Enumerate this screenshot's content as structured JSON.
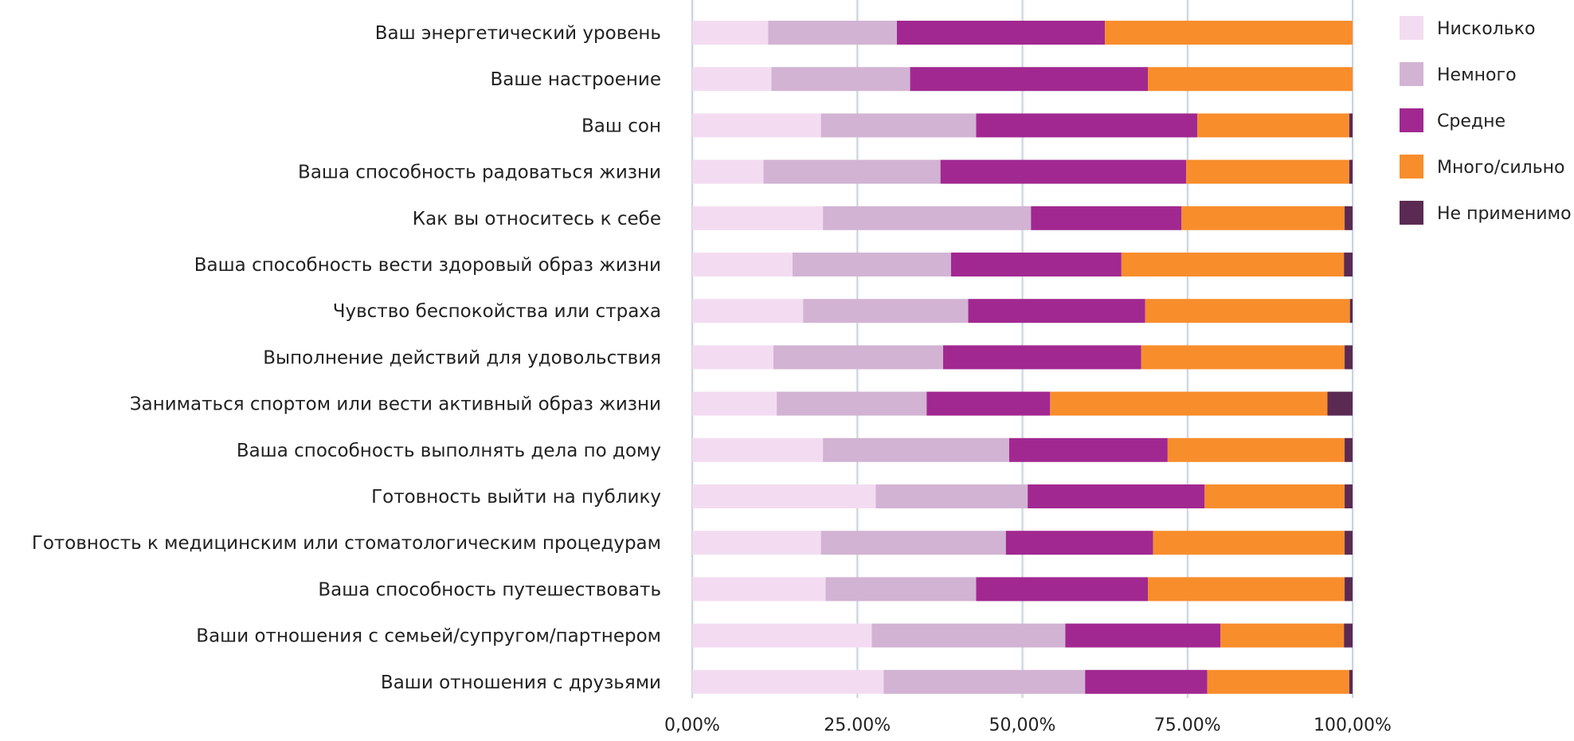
{
  "chart_data": {
    "type": "bar",
    "orientation": "horizontal",
    "stacked": "percent",
    "title": "",
    "xlabel": "",
    "ylabel": "",
    "xlim": [
      0,
      1
    ],
    "grid": true,
    "legend_position": "right",
    "x_ticks": [
      "0,00%",
      "25.00%",
      "50,00%",
      "75.00%",
      "100,00%"
    ],
    "categories": [
      "Ваш энергетический уровень",
      "Ваше настроение",
      "Ваш сон",
      "Ваша способность радоваться жизни",
      "Как вы относитесь к себе",
      "Ваша способность вести здоровый образ жизни",
      "Чувство беспокойства или страха",
      "Выполнение действий для удовольствия",
      "Заниматься спортом или вести активный образ жизни",
      "Ваша способность выполнять дела по дому",
      "Готовность выйти на публику",
      "Готовность к медицинским или стоматологическим процедурам",
      "Ваша способность путешествовать",
      "Ваши отношения с семьей/супругом/партнером",
      "Ваши отношения с друзьями"
    ],
    "series": [
      {
        "name": "Нисколько",
        "color": "#f3dcf1",
        "values": [
          0.115,
          0.12,
          0.195,
          0.108,
          0.198,
          0.152,
          0.168,
          0.123,
          0.128,
          0.198,
          0.278,
          0.195,
          0.202,
          0.272,
          0.29
        ]
      },
      {
        "name": "Немного",
        "color": "#d2b3d3",
        "values": [
          0.195,
          0.21,
          0.235,
          0.268,
          0.315,
          0.24,
          0.25,
          0.257,
          0.227,
          0.282,
          0.23,
          0.28,
          0.228,
          0.293,
          0.305
        ]
      },
      {
        "name": "Средне",
        "color": "#a12890",
        "values": [
          0.315,
          0.36,
          0.335,
          0.372,
          0.228,
          0.258,
          0.268,
          0.3,
          0.187,
          0.24,
          0.268,
          0.223,
          0.26,
          0.235,
          0.185
        ]
      },
      {
        "name": "Много/сильно",
        "color": "#f88d2c",
        "values": [
          0.375,
          0.31,
          0.23,
          0.247,
          0.247,
          0.337,
          0.31,
          0.308,
          0.42,
          0.268,
          0.212,
          0.29,
          0.298,
          0.187,
          0.215
        ]
      },
      {
        "name": "Не применимо",
        "color": "#5a2a53",
        "values": [
          0.0,
          0.0,
          0.005,
          0.005,
          0.012,
          0.013,
          0.004,
          0.012,
          0.038,
          0.012,
          0.012,
          0.012,
          0.012,
          0.013,
          0.005
        ]
      }
    ]
  }
}
